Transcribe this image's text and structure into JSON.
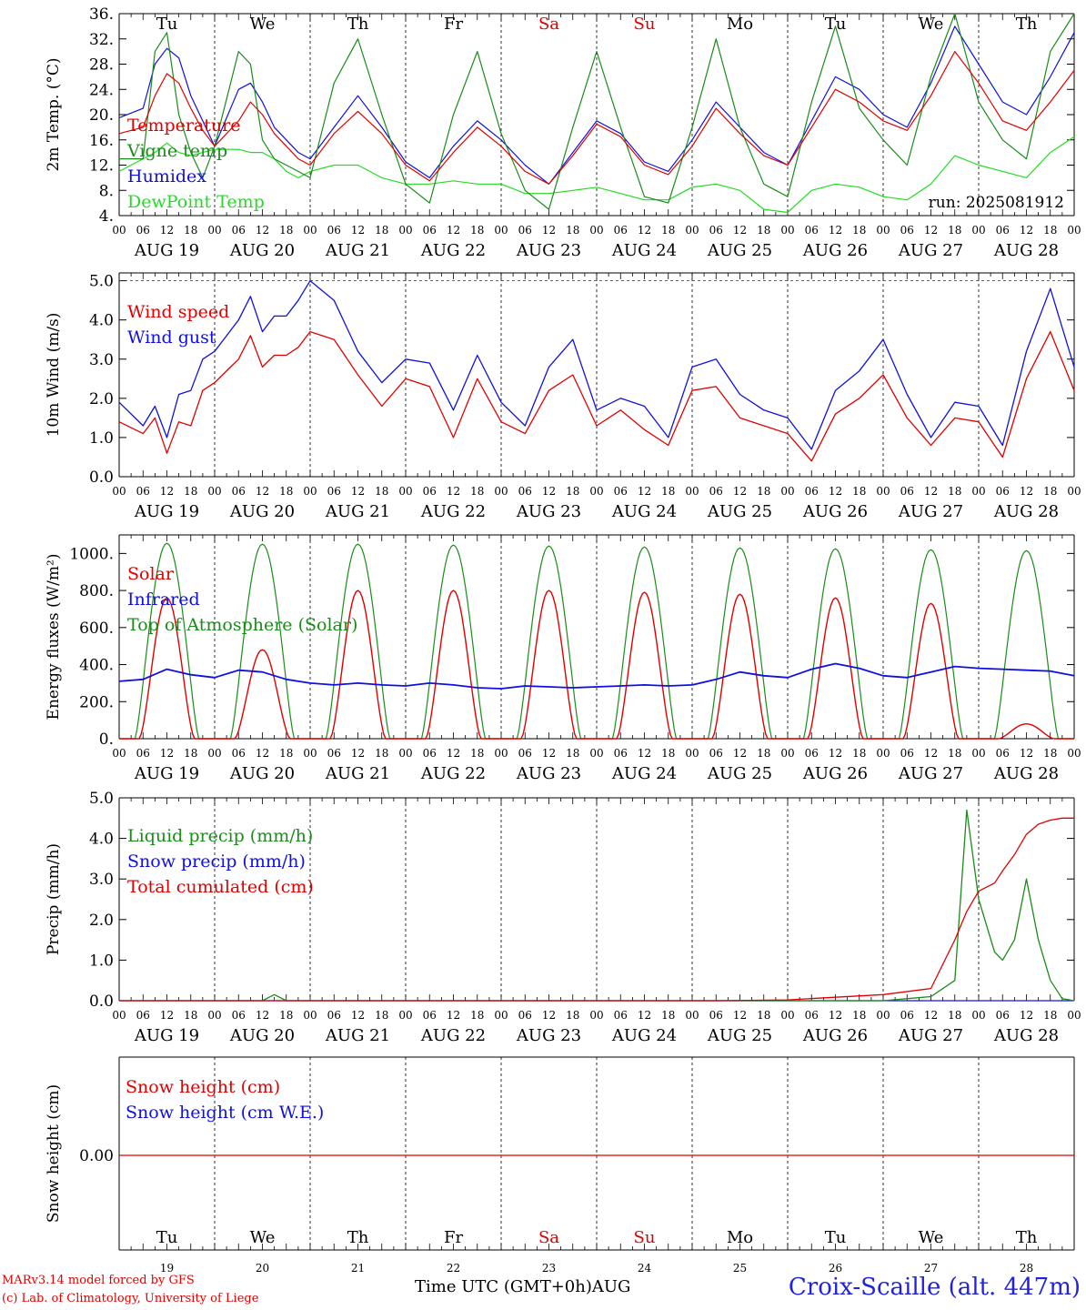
{
  "run_label": "run: 2025081912",
  "footer": {
    "model": "MARv3.14 model forced by GFS",
    "copyright": "(c) Lab. of Climatology, University of Liege",
    "time_axis": "Time UTC (GMT+0h)AUG",
    "station": "Croix-Scaille (alt. 447m)"
  },
  "days": [
    {
      "abbr": "Tu",
      "label": "AUG 19",
      "num": "19",
      "weekend": false
    },
    {
      "abbr": "We",
      "label": "AUG 20",
      "num": "20",
      "weekend": false
    },
    {
      "abbr": "Th",
      "label": "AUG 21",
      "num": "21",
      "weekend": false
    },
    {
      "abbr": "Fr",
      "label": "AUG 22",
      "num": "22",
      "weekend": false
    },
    {
      "abbr": "Sa",
      "label": "AUG 23",
      "num": "23",
      "weekend": true
    },
    {
      "abbr": "Su",
      "label": "AUG 24",
      "num": "24",
      "weekend": true
    },
    {
      "abbr": "Mo",
      "label": "AUG 25",
      "num": "25",
      "weekend": false
    },
    {
      "abbr": "Tu",
      "label": "AUG 26",
      "num": "26",
      "weekend": false
    },
    {
      "abbr": "We",
      "label": "AUG 27",
      "num": "27",
      "weekend": false
    },
    {
      "abbr": "Th",
      "label": "AUG 28",
      "num": "28",
      "weekend": false
    }
  ],
  "hour_ticks": [
    "00",
    "06",
    "12",
    "18"
  ],
  "last_hour_tick": "00",
  "colors": {
    "red": "#e00000",
    "green": "#1a8c1a",
    "blue": "#1010e0",
    "lightgreen": "#22dd22",
    "weekend": "#e00000"
  },
  "chart_data": [
    {
      "type": "line",
      "ylabel": "2m Temp. (°C)",
      "ylim": [
        4,
        36
      ],
      "yticks": [
        4,
        8,
        12,
        16,
        20,
        24,
        28,
        32,
        36
      ],
      "ytick_labels": [
        "4.",
        "8.",
        "12.",
        "16.",
        "20.",
        "24.",
        "28.",
        "32.",
        "36."
      ],
      "x_hours": [
        0,
        6,
        9,
        12,
        15,
        18,
        21,
        24,
        30,
        33,
        36,
        39,
        42,
        45,
        48,
        54,
        60,
        66,
        72,
        78,
        84,
        90,
        96,
        102,
        108,
        114,
        120,
        126,
        132,
        138,
        144,
        150,
        156,
        162,
        168,
        174,
        180,
        186,
        192,
        198,
        204,
        210,
        216,
        222,
        228,
        234,
        240
      ],
      "series": [
        {
          "name": "Temperature",
          "color": "red",
          "values": [
            17,
            18,
            23,
            26.5,
            25,
            21,
            17.5,
            15,
            19,
            22,
            20,
            17,
            15,
            13,
            12,
            17,
            20.5,
            17,
            12,
            9.5,
            14,
            18,
            15,
            11,
            9,
            13.5,
            18.5,
            16.5,
            12,
            10.5,
            15,
            21,
            17,
            13.5,
            12,
            18,
            24,
            22,
            19,
            17.5,
            23,
            30,
            25,
            19,
            17.5,
            22,
            27
          ]
        },
        {
          "name": "Vigne temp",
          "color": "green",
          "values": [
            13,
            13,
            30,
            33,
            20,
            14,
            10,
            15,
            30,
            28,
            16,
            13,
            12,
            11,
            10,
            25,
            32,
            20,
            9,
            6,
            20,
            30,
            17,
            8,
            5,
            18,
            30,
            18,
            7,
            6,
            18,
            32,
            18,
            9,
            7,
            22,
            34,
            21,
            16,
            12,
            26,
            36,
            22,
            16,
            13,
            30,
            36
          ]
        },
        {
          "name": "Humidex",
          "color": "blue",
          "values": [
            19.5,
            21,
            28,
            30.5,
            29,
            23,
            19,
            15,
            24,
            25,
            22,
            18,
            16,
            14,
            13,
            18,
            23,
            18,
            12.5,
            10,
            15,
            19,
            16,
            12,
            9,
            14,
            19,
            17,
            12.5,
            11,
            16,
            22,
            18,
            14,
            12,
            19,
            26,
            24,
            20,
            18,
            25,
            34,
            28,
            22,
            20,
            26,
            33
          ]
        },
        {
          "name": "DewPoint Temp",
          "color": "lightgreen",
          "values": [
            11,
            13,
            14,
            15.5,
            14,
            13.5,
            14,
            14.5,
            14.5,
            14,
            14,
            13,
            11,
            10,
            11,
            12,
            12,
            10,
            9,
            9,
            9.5,
            9,
            9,
            7.5,
            7.5,
            8,
            8.5,
            7.5,
            6.5,
            6.5,
            8.5,
            9,
            8,
            5,
            4.5,
            8,
            9,
            8.5,
            7,
            6.5,
            9,
            13.5,
            12,
            11,
            10,
            14,
            16.5
          ]
        }
      ]
    },
    {
      "type": "line",
      "ylabel": "10m Wind (m/s)",
      "ylim": [
        0,
        5.2
      ],
      "yticks": [
        0,
        1,
        2,
        3,
        4,
        5
      ],
      "ytick_labels": [
        "0.0",
        "1.0",
        "2.0",
        "3.0",
        "4.0",
        "5.0"
      ],
      "reference_line": 5.0,
      "x_hours": [
        0,
        6,
        9,
        12,
        15,
        18,
        21,
        24,
        30,
        33,
        36,
        39,
        42,
        45,
        48,
        54,
        60,
        66,
        72,
        78,
        84,
        90,
        96,
        102,
        108,
        114,
        120,
        126,
        132,
        138,
        144,
        150,
        156,
        162,
        168,
        174,
        180,
        186,
        192,
        198,
        204,
        210,
        216,
        222,
        228,
        234,
        240
      ],
      "series": [
        {
          "name": "Wind speed",
          "color": "red",
          "values": [
            1.4,
            1.1,
            1.5,
            0.6,
            1.4,
            1.3,
            2.2,
            2.4,
            3,
            3.6,
            2.8,
            3.1,
            3.1,
            3.3,
            3.7,
            3.5,
            2.6,
            1.8,
            2.5,
            2.3,
            1,
            2.5,
            1.4,
            1.1,
            2.2,
            2.6,
            1.3,
            1.7,
            1.2,
            0.8,
            2.2,
            2.3,
            1.5,
            1.3,
            1.1,
            0.4,
            1.6,
            2,
            2.6,
            1.5,
            0.8,
            1.5,
            1.4,
            0.5,
            2.5,
            3.7,
            2.2
          ]
        },
        {
          "name": "Wind gust",
          "color": "blue",
          "values": [
            1.9,
            1.3,
            1.8,
            1.0,
            2.1,
            2.2,
            3,
            3.2,
            4,
            4.6,
            3.7,
            4.1,
            4.1,
            4.5,
            5.0,
            4.5,
            3.2,
            2.4,
            3.0,
            2.9,
            1.7,
            3.1,
            1.9,
            1.3,
            2.8,
            3.5,
            1.7,
            2.0,
            1.8,
            1.0,
            2.8,
            3.0,
            2.1,
            1.7,
            1.5,
            0.7,
            2.2,
            2.7,
            3.5,
            2.1,
            1.0,
            1.9,
            1.8,
            0.8,
            3.2,
            4.8,
            2.8
          ]
        }
      ]
    },
    {
      "type": "line",
      "ylabel": "Energy fluxes (W/m²)",
      "ylim": [
        0,
        1100
      ],
      "yticks": [
        0,
        200,
        400,
        600,
        800,
        1000
      ],
      "ytick_labels": [
        "0.",
        "200.",
        "400.",
        "600.",
        "800.",
        "1000."
      ],
      "solar_peaks": [
        760,
        480,
        800,
        800,
        800,
        790,
        780,
        760,
        730,
        80
      ],
      "toa_peaks": [
        1055,
        1050,
        1050,
        1045,
        1040,
        1035,
        1030,
        1025,
        1020,
        1015
      ],
      "x_infrared": [
        0,
        6,
        12,
        18,
        24,
        30,
        36,
        42,
        48,
        54,
        60,
        66,
        72,
        78,
        84,
        90,
        96,
        102,
        108,
        114,
        120,
        126,
        132,
        138,
        144,
        150,
        156,
        162,
        168,
        174,
        180,
        186,
        192,
        198,
        204,
        210,
        216,
        222,
        228,
        234,
        240
      ],
      "series": [
        {
          "name": "Solar",
          "color": "red"
        },
        {
          "name": "Infrared",
          "color": "blue",
          "values": [
            310,
            320,
            375,
            345,
            330,
            370,
            360,
            320,
            300,
            290,
            300,
            290,
            285,
            300,
            290,
            275,
            270,
            285,
            280,
            275,
            280,
            285,
            290,
            285,
            290,
            320,
            360,
            340,
            330,
            375,
            405,
            380,
            340,
            330,
            360,
            390,
            380,
            375,
            370,
            365,
            340
          ]
        },
        {
          "name": "Top of Atmosphere (Solar)",
          "color": "green"
        }
      ]
    },
    {
      "type": "line",
      "ylabel": "Precip (mm/h)",
      "ylim": [
        0,
        5
      ],
      "yticks": [
        0,
        1,
        2,
        3,
        4,
        5
      ],
      "ytick_labels": [
        "0.0",
        "1.0",
        "2.0",
        "3.0",
        "4.0",
        "5.0"
      ],
      "x_hours": [
        0,
        36,
        39,
        42,
        150,
        168,
        192,
        204,
        210,
        213,
        216,
        220,
        222,
        225,
        228,
        231,
        234,
        237,
        240
      ],
      "series": [
        {
          "name": "Liquid precip (mm/h)",
          "color": "green",
          "values": [
            0,
            0,
            0.15,
            0,
            0,
            0,
            0,
            0.1,
            0.5,
            4.7,
            2.5,
            1.2,
            1.0,
            1.5,
            3.0,
            1.5,
            0.5,
            0.05,
            0
          ]
        },
        {
          "name": "Snow precip (mm/h)",
          "color": "blue",
          "values": [
            0,
            0,
            0,
            0,
            0,
            0,
            0,
            0,
            0,
            0,
            0,
            0,
            0,
            0,
            0,
            0,
            0,
            0,
            0
          ]
        },
        {
          "name": "Total cumulated (cm)",
          "color": "red",
          "values": [
            0,
            0,
            0,
            0,
            0,
            0.02,
            0.15,
            0.3,
            1.5,
            2.2,
            2.7,
            2.9,
            3.2,
            3.6,
            4.1,
            4.35,
            4.45,
            4.5,
            4.5
          ]
        }
      ]
    },
    {
      "type": "line",
      "ylabel": "Snow height (cm)",
      "ytick_labels": [
        "0.00"
      ],
      "series": [
        {
          "name": "Snow height (cm)",
          "color": "red",
          "values": [
            0
          ]
        },
        {
          "name": "Snow height (cm W.E.)",
          "color": "blue",
          "values": [
            0
          ]
        }
      ]
    }
  ]
}
